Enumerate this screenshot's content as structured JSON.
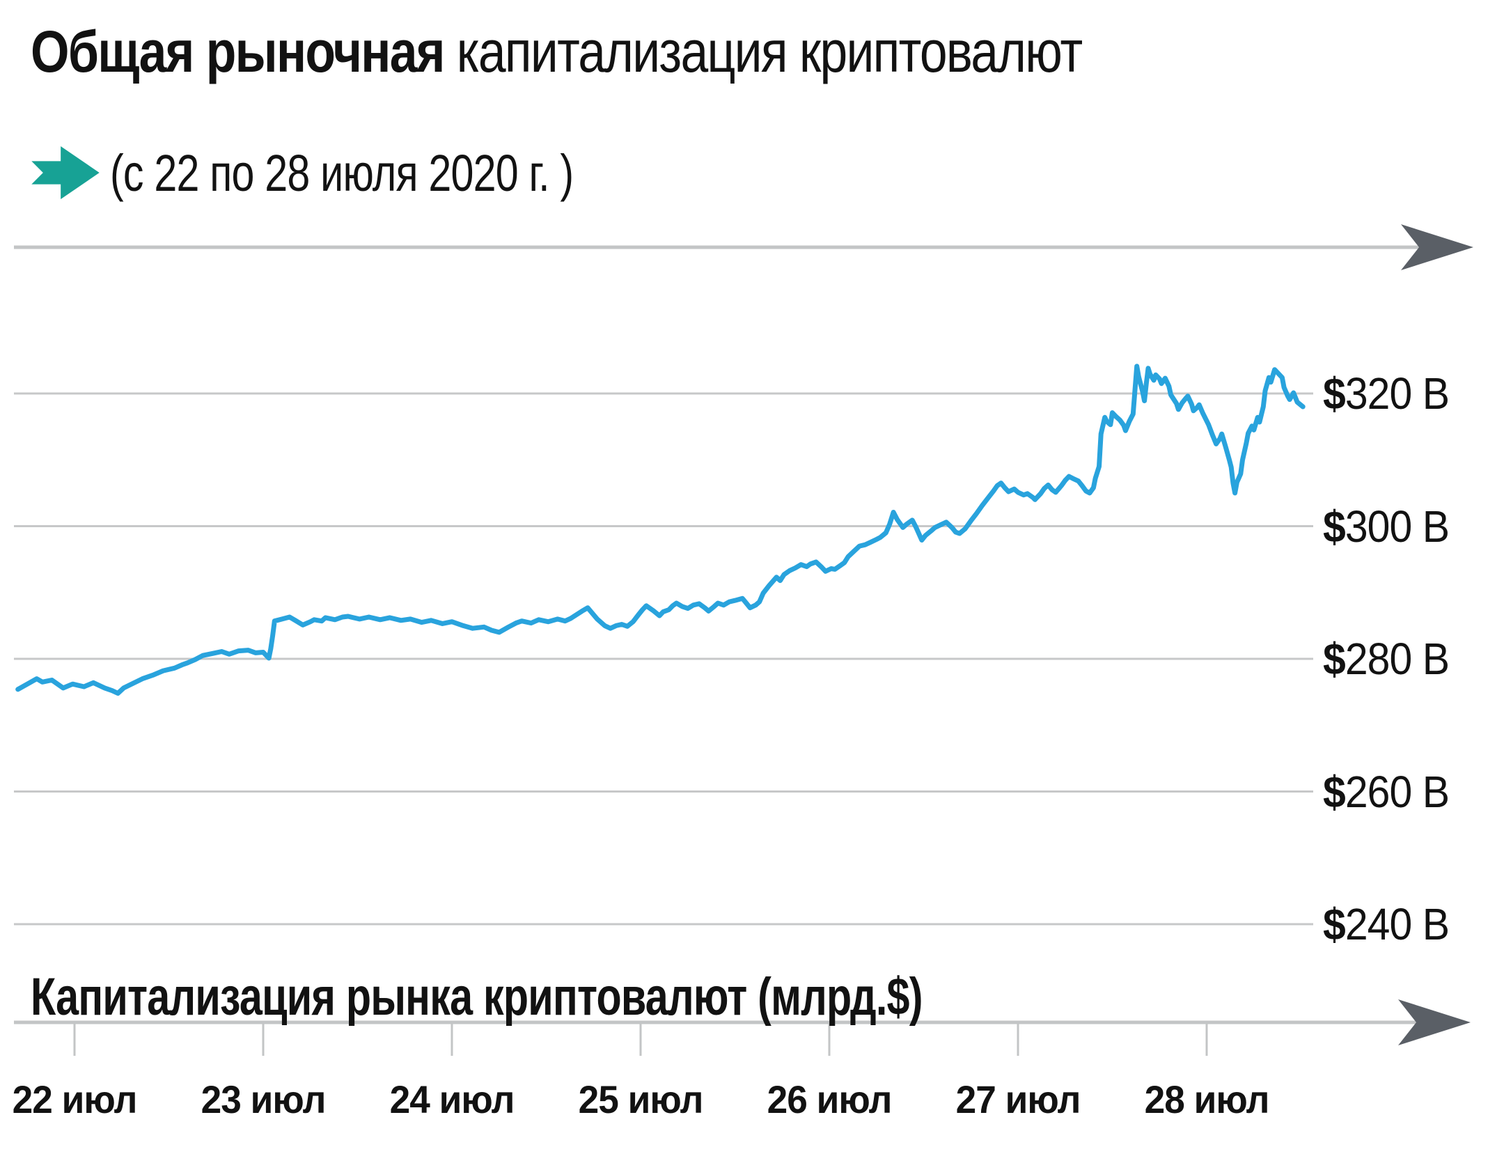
{
  "title": {
    "bold": "Общая рыночная",
    "rest": " капитализация криптовалют"
  },
  "subtitle": "(с 22 по 28 июля 2020 г. )",
  "bottom_axis_caption": "Капитализация рынка криптовалют (млрд.$)",
  "icons": {
    "subtitle_arrow": "teal-right-arrow",
    "axis_arrowheads": "gray-right-arrowhead"
  },
  "colors": {
    "line": "#29a3dd",
    "teal_arrow": "#17a295",
    "axis_line": "#c3c5c6",
    "gridline": "#c7c8c9",
    "arrowhead": "#5a5f66",
    "text": "#121212"
  },
  "chart_data": {
    "type": "line",
    "title": "Общая рыночная капитализация криптовалют (с 22 по 28 июля 2020 г.)",
    "ylabel": "Капитализация рынка криптовалют (млрд.$)",
    "xlabel": "",
    "legend_position": "none",
    "grid": true,
    "x_tick_labels": [
      "22 июл",
      "23 июл",
      "24 июл",
      "25 июл",
      "26 июл",
      "27 июл",
      "28 июл"
    ],
    "x_ticks_day_of_july": [
      22,
      23,
      24,
      25,
      26,
      27,
      28
    ],
    "y_tick_labels": [
      "$320 B",
      "$300 B",
      "$280 B",
      "$260 B",
      "$240 B"
    ],
    "y_ticks_billions": [
      320,
      300,
      280,
      260,
      240
    ],
    "ylim_billions": [
      236,
      331
    ],
    "xlim_day_of_july": [
      21.68,
      28.55
    ],
    "series": [
      {
        "name": "Общая рыночная капитализация криптовалют",
        "unit": "billion USD",
        "x_unit": "day of July 2020",
        "points": [
          [
            21.7,
            275.4
          ],
          [
            21.75,
            276.2
          ],
          [
            21.8,
            277.0
          ],
          [
            21.83,
            276.5
          ],
          [
            21.88,
            276.8
          ],
          [
            21.94,
            275.6
          ],
          [
            21.99,
            276.2
          ],
          [
            22.05,
            275.8
          ],
          [
            22.1,
            276.4
          ],
          [
            22.16,
            275.6
          ],
          [
            22.2,
            275.2
          ],
          [
            22.23,
            274.8
          ],
          [
            22.26,
            275.6
          ],
          [
            22.31,
            276.3
          ],
          [
            22.36,
            277.0
          ],
          [
            22.42,
            277.6
          ],
          [
            22.47,
            278.2
          ],
          [
            22.53,
            278.6
          ],
          [
            22.57,
            279.1
          ],
          [
            22.6,
            279.4
          ],
          [
            22.64,
            279.9
          ],
          [
            22.68,
            280.5
          ],
          [
            22.73,
            280.8
          ],
          [
            22.78,
            281.1
          ],
          [
            22.82,
            280.7
          ],
          [
            22.87,
            281.2
          ],
          [
            22.92,
            281.3
          ],
          [
            22.96,
            280.9
          ],
          [
            23.0,
            281.0
          ],
          [
            23.03,
            280.1
          ],
          [
            23.04,
            281.5
          ],
          [
            23.05,
            283.5
          ],
          [
            23.06,
            285.7
          ],
          [
            23.1,
            286.0
          ],
          [
            23.14,
            286.3
          ],
          [
            23.17,
            285.8
          ],
          [
            23.21,
            285.1
          ],
          [
            23.25,
            285.6
          ],
          [
            23.27,
            285.9
          ],
          [
            23.31,
            285.7
          ],
          [
            23.33,
            286.2
          ],
          [
            23.38,
            285.9
          ],
          [
            23.42,
            286.3
          ],
          [
            23.45,
            286.4
          ],
          [
            23.51,
            286.0
          ],
          [
            23.56,
            286.3
          ],
          [
            23.62,
            285.9
          ],
          [
            23.67,
            286.2
          ],
          [
            23.73,
            285.8
          ],
          [
            23.78,
            286.0
          ],
          [
            23.84,
            285.5
          ],
          [
            23.89,
            285.8
          ],
          [
            23.95,
            285.3
          ],
          [
            24.0,
            285.6
          ],
          [
            24.06,
            285.0
          ],
          [
            24.11,
            284.6
          ],
          [
            24.17,
            284.8
          ],
          [
            24.21,
            284.3
          ],
          [
            24.25,
            284.0
          ],
          [
            24.3,
            284.8
          ],
          [
            24.34,
            285.4
          ],
          [
            24.37,
            285.7
          ],
          [
            24.42,
            285.4
          ],
          [
            24.46,
            285.9
          ],
          [
            24.51,
            285.6
          ],
          [
            24.56,
            286.0
          ],
          [
            24.6,
            285.7
          ],
          [
            24.63,
            286.1
          ],
          [
            24.69,
            287.2
          ],
          [
            24.72,
            287.7
          ],
          [
            24.77,
            286.0
          ],
          [
            24.81,
            285.0
          ],
          [
            24.84,
            284.6
          ],
          [
            24.87,
            285.0
          ],
          [
            24.9,
            285.2
          ],
          [
            24.93,
            284.9
          ],
          [
            24.96,
            285.6
          ],
          [
            24.99,
            286.7
          ],
          [
            25.01,
            287.4
          ],
          [
            25.03,
            288.0
          ],
          [
            25.07,
            287.2
          ],
          [
            25.1,
            286.5
          ],
          [
            25.12,
            287.1
          ],
          [
            25.15,
            287.4
          ],
          [
            25.17,
            288.0
          ],
          [
            25.19,
            288.4
          ],
          [
            25.22,
            287.9
          ],
          [
            25.25,
            287.6
          ],
          [
            25.28,
            288.1
          ],
          [
            25.31,
            288.3
          ],
          [
            25.34,
            287.7
          ],
          [
            25.36,
            287.2
          ],
          [
            25.39,
            287.9
          ],
          [
            25.41,
            288.4
          ],
          [
            25.44,
            288.1
          ],
          [
            25.47,
            288.6
          ],
          [
            25.5,
            288.8
          ],
          [
            25.54,
            289.1
          ],
          [
            25.56,
            288.4
          ],
          [
            25.58,
            287.7
          ],
          [
            25.61,
            288.1
          ],
          [
            25.63,
            288.6
          ],
          [
            25.65,
            289.9
          ],
          [
            25.68,
            291.0
          ],
          [
            25.72,
            292.3
          ],
          [
            25.74,
            291.8
          ],
          [
            25.76,
            292.7
          ],
          [
            25.79,
            293.3
          ],
          [
            25.82,
            293.7
          ],
          [
            25.85,
            294.2
          ],
          [
            25.88,
            293.9
          ],
          [
            25.9,
            294.3
          ],
          [
            25.93,
            294.6
          ],
          [
            25.96,
            293.8
          ],
          [
            25.98,
            293.2
          ],
          [
            26.01,
            293.6
          ],
          [
            26.03,
            293.5
          ],
          [
            26.06,
            294.1
          ],
          [
            26.08,
            294.5
          ],
          [
            26.1,
            295.4
          ],
          [
            26.13,
            296.2
          ],
          [
            26.16,
            297.0
          ],
          [
            26.19,
            297.2
          ],
          [
            26.22,
            297.6
          ],
          [
            26.25,
            298.0
          ],
          [
            26.27,
            298.3
          ],
          [
            26.3,
            299.0
          ],
          [
            26.32,
            300.3
          ],
          [
            26.34,
            302.1
          ],
          [
            26.36,
            301.0
          ],
          [
            26.39,
            299.8
          ],
          [
            26.41,
            300.3
          ],
          [
            26.44,
            300.9
          ],
          [
            26.46,
            299.8
          ],
          [
            26.49,
            297.9
          ],
          [
            26.51,
            298.6
          ],
          [
            26.54,
            299.3
          ],
          [
            26.56,
            299.8
          ],
          [
            26.59,
            300.2
          ],
          [
            26.62,
            300.6
          ],
          [
            26.65,
            299.8
          ],
          [
            26.67,
            299.1
          ],
          [
            26.69,
            298.9
          ],
          [
            26.72,
            299.6
          ],
          [
            26.75,
            300.8
          ],
          [
            26.78,
            301.9
          ],
          [
            26.81,
            303.1
          ],
          [
            26.84,
            304.2
          ],
          [
            26.87,
            305.3
          ],
          [
            26.89,
            306.1
          ],
          [
            26.91,
            306.5
          ],
          [
            26.93,
            305.8
          ],
          [
            26.95,
            305.2
          ],
          [
            26.98,
            305.6
          ],
          [
            27.0,
            305.1
          ],
          [
            27.03,
            304.7
          ],
          [
            27.05,
            304.9
          ],
          [
            27.08,
            304.3
          ],
          [
            27.09,
            304.0
          ],
          [
            27.12,
            304.9
          ],
          [
            27.14,
            305.7
          ],
          [
            27.16,
            306.2
          ],
          [
            27.18,
            305.5
          ],
          [
            27.2,
            305.1
          ],
          [
            27.23,
            306.1
          ],
          [
            27.25,
            306.9
          ],
          [
            27.27,
            307.5
          ],
          [
            27.29,
            307.2
          ],
          [
            27.32,
            306.8
          ],
          [
            27.34,
            306.1
          ],
          [
            27.36,
            305.3
          ],
          [
            27.38,
            305.0
          ],
          [
            27.4,
            305.8
          ],
          [
            27.41,
            307.2
          ],
          [
            27.43,
            309.0
          ],
          [
            27.44,
            313.9
          ],
          [
            27.46,
            316.4
          ],
          [
            27.47,
            315.8
          ],
          [
            27.49,
            315.3
          ],
          [
            27.5,
            317.1
          ],
          [
            27.52,
            316.5
          ],
          [
            27.54,
            316.0
          ],
          [
            27.56,
            315.2
          ],
          [
            27.57,
            314.4
          ],
          [
            27.59,
            315.8
          ],
          [
            27.61,
            316.9
          ],
          [
            27.62,
            320.5
          ],
          [
            27.63,
            324.1
          ],
          [
            27.64,
            322.5
          ],
          [
            27.66,
            320.3
          ],
          [
            27.67,
            318.9
          ],
          [
            27.68,
            321.5
          ],
          [
            27.69,
            323.8
          ],
          [
            27.7,
            322.9
          ],
          [
            27.72,
            322.0
          ],
          [
            27.73,
            322.8
          ],
          [
            27.75,
            322.2
          ],
          [
            27.76,
            321.5
          ],
          [
            27.78,
            322.3
          ],
          [
            27.8,
            321.1
          ],
          [
            27.81,
            319.8
          ],
          [
            27.84,
            318.5
          ],
          [
            27.85,
            317.6
          ],
          [
            27.87,
            318.6
          ],
          [
            27.89,
            319.3
          ],
          [
            27.9,
            319.6
          ],
          [
            27.92,
            318.4
          ],
          [
            27.93,
            317.4
          ],
          [
            27.95,
            317.9
          ],
          [
            27.96,
            318.3
          ],
          [
            27.98,
            317.0
          ],
          [
            28.01,
            315.3
          ],
          [
            28.03,
            313.8
          ],
          [
            28.05,
            312.4
          ],
          [
            28.07,
            313.2
          ],
          [
            28.08,
            313.9
          ],
          [
            28.1,
            312.0
          ],
          [
            28.12,
            310.0
          ],
          [
            28.13,
            308.9
          ],
          [
            28.14,
            306.5
          ],
          [
            28.15,
            305.0
          ],
          [
            28.16,
            306.6
          ],
          [
            28.18,
            307.9
          ],
          [
            28.19,
            310.0
          ],
          [
            28.21,
            312.5
          ],
          [
            28.22,
            314.0
          ],
          [
            28.24,
            315.1
          ],
          [
            28.25,
            314.5
          ],
          [
            28.27,
            316.4
          ],
          [
            28.28,
            315.7
          ],
          [
            28.3,
            318.0
          ],
          [
            28.31,
            320.4
          ],
          [
            28.33,
            322.4
          ],
          [
            28.34,
            321.7
          ],
          [
            28.36,
            323.6
          ],
          [
            28.38,
            323.0
          ],
          [
            28.4,
            322.4
          ],
          [
            28.41,
            320.9
          ],
          [
            28.43,
            319.6
          ],
          [
            28.44,
            319.1
          ],
          [
            28.46,
            320.1
          ],
          [
            28.47,
            319.4
          ],
          [
            28.48,
            318.7
          ],
          [
            28.51,
            318.0
          ]
        ]
      }
    ]
  }
}
